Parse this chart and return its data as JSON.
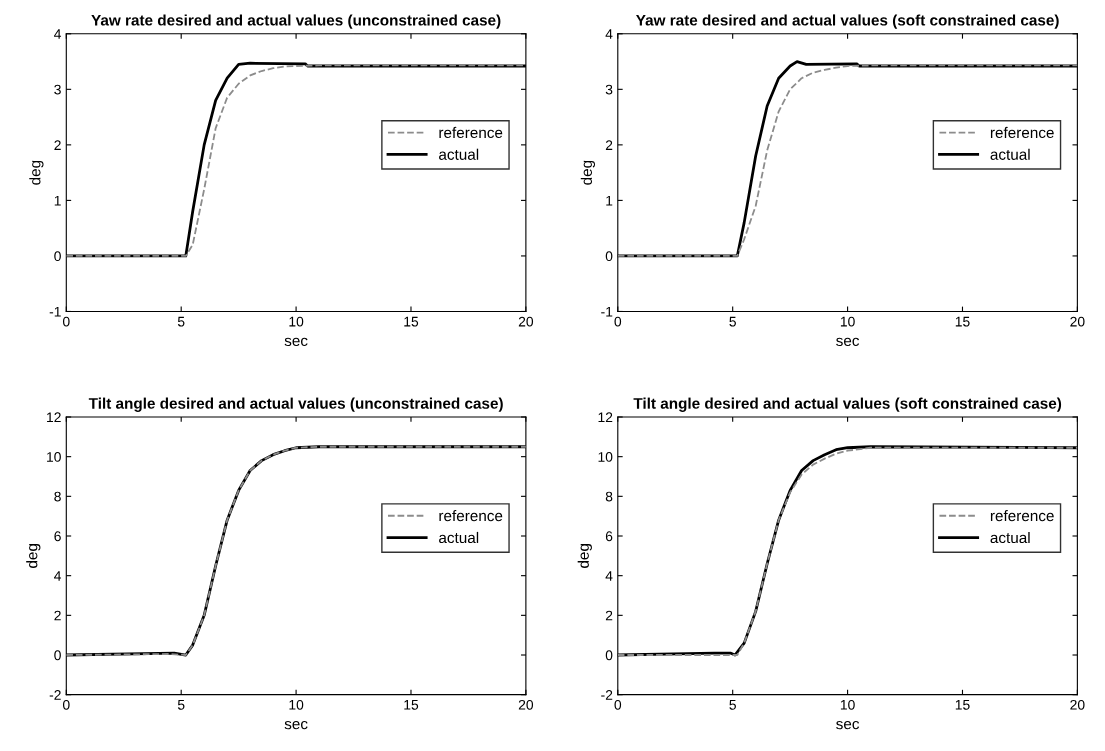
{
  "chart_data": [
    {
      "type": "line",
      "title": "Yaw rate desired and actual values (unconstrained case)",
      "xlabel": "sec",
      "ylabel": "deg",
      "xlim": [
        0,
        20
      ],
      "ylim": [
        -1,
        4
      ],
      "xticks": [
        0,
        5,
        10,
        15,
        20
      ],
      "yticks": [
        -1,
        0,
        1,
        2,
        3,
        4
      ],
      "legend": "right",
      "grid": false,
      "series": [
        {
          "name": "reference",
          "color": "#8c8c8c",
          "line_style": "dashed",
          "x": [
            0,
            5.2,
            5.5,
            6,
            6.5,
            7,
            7.5,
            8,
            8.5,
            9,
            9.5,
            10,
            11,
            20
          ],
          "values": [
            0,
            0,
            0.2,
            1.2,
            2.3,
            2.85,
            3.1,
            3.25,
            3.33,
            3.38,
            3.41,
            3.42,
            3.43,
            3.43
          ]
        },
        {
          "name": "actual",
          "color": "#000000",
          "line_style": "solid",
          "x": [
            0,
            5.2,
            5.5,
            6,
            6.5,
            7,
            7.5,
            8,
            10.4,
            10.5,
            20
          ],
          "values": [
            0,
            0,
            0.8,
            2.0,
            2.8,
            3.2,
            3.45,
            3.47,
            3.46,
            3.42,
            3.42
          ]
        }
      ]
    },
    {
      "type": "line",
      "title": "Yaw rate desired and actual values (soft constrained case)",
      "xlabel": "sec",
      "ylabel": "deg",
      "xlim": [
        0,
        20
      ],
      "ylim": [
        -1,
        4
      ],
      "xticks": [
        0,
        5,
        10,
        15,
        20
      ],
      "yticks": [
        -1,
        0,
        1,
        2,
        3,
        4
      ],
      "legend": "right",
      "grid": false,
      "series": [
        {
          "name": "reference",
          "color": "#8c8c8c",
          "line_style": "dashed",
          "x": [
            0,
            5.2,
            5.5,
            6,
            6.5,
            7,
            7.5,
            8,
            8.5,
            9,
            9.5,
            10,
            11,
            20
          ],
          "values": [
            0,
            0,
            0.3,
            0.9,
            1.9,
            2.6,
            3.0,
            3.2,
            3.3,
            3.35,
            3.39,
            3.42,
            3.43,
            3.43
          ]
        },
        {
          "name": "actual",
          "color": "#000000",
          "line_style": "solid",
          "x": [
            0,
            5.2,
            5.5,
            6,
            6.5,
            7,
            7.5,
            7.8,
            8.2,
            10.4,
            10.5,
            20
          ],
          "values": [
            0,
            0,
            0.6,
            1.8,
            2.7,
            3.2,
            3.42,
            3.5,
            3.45,
            3.46,
            3.42,
            3.42
          ]
        }
      ]
    },
    {
      "type": "line",
      "title": "Tilt angle desired and actual values (unconstrained case)",
      "xlabel": "sec",
      "ylabel": "deg",
      "xlim": [
        0,
        20
      ],
      "ylim": [
        -2,
        12
      ],
      "xticks": [
        0,
        5,
        10,
        15,
        20
      ],
      "yticks": [
        -2,
        0,
        2,
        4,
        6,
        8,
        10,
        12
      ],
      "legend": "right",
      "grid": false,
      "series": [
        {
          "name": "reference",
          "color": "#8c8c8c",
          "line_style": "dashed",
          "x": [
            0,
            4.5,
            5.2,
            5.5,
            6,
            6.5,
            7,
            7.5,
            8,
            8.5,
            9,
            9.5,
            10,
            11,
            20
          ],
          "values": [
            0,
            0.05,
            0,
            0.5,
            2.0,
            4.5,
            6.8,
            8.3,
            9.3,
            9.8,
            10.1,
            10.3,
            10.45,
            10.5,
            10.5
          ]
        },
        {
          "name": "actual",
          "color": "#000000",
          "line_style": "solid",
          "x": [
            0,
            4.7,
            5.2,
            5.5,
            6,
            6.5,
            7,
            7.5,
            8,
            8.5,
            9,
            9.5,
            10,
            11,
            20
          ],
          "values": [
            0,
            0.1,
            0,
            0.5,
            2.0,
            4.5,
            6.8,
            8.3,
            9.3,
            9.8,
            10.1,
            10.3,
            10.45,
            10.5,
            10.5
          ]
        }
      ]
    },
    {
      "type": "line",
      "title": "Tilt angle desired and actual values (soft constrained case)",
      "xlabel": "sec",
      "ylabel": "deg",
      "xlim": [
        0,
        20
      ],
      "ylim": [
        -2,
        12
      ],
      "xticks": [
        0,
        5,
        10,
        15,
        20
      ],
      "yticks": [
        -2,
        0,
        2,
        4,
        6,
        8,
        10,
        12
      ],
      "legend": "right",
      "grid": false,
      "series": [
        {
          "name": "reference",
          "color": "#8c8c8c",
          "line_style": "dashed",
          "x": [
            0,
            4.2,
            5.2,
            5.5,
            6,
            6.5,
            7,
            7.5,
            8,
            8.5,
            9,
            9.5,
            10,
            11,
            20
          ],
          "values": [
            0,
            0,
            0,
            0.6,
            2.2,
            4.6,
            6.8,
            8.2,
            9.1,
            9.6,
            9.9,
            10.15,
            10.3,
            10.45,
            10.45
          ]
        },
        {
          "name": "actual",
          "color": "#000000",
          "line_style": "solid",
          "x": [
            0,
            4.2,
            4.9,
            5.1,
            5.5,
            6,
            6.5,
            7,
            7.5,
            8,
            8.5,
            9,
            9.5,
            10,
            11,
            20
          ],
          "values": [
            0,
            0.1,
            0.1,
            0,
            0.6,
            2.2,
            4.6,
            6.8,
            8.3,
            9.3,
            9.8,
            10.1,
            10.35,
            10.45,
            10.5,
            10.45
          ]
        }
      ]
    }
  ]
}
